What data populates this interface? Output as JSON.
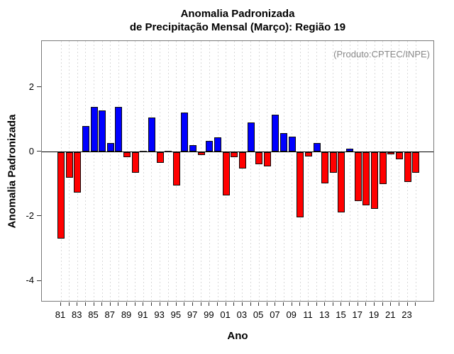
{
  "title": {
    "line1": "Anomalia Padronizada",
    "line2": "de Precipitação Mensal (Março): Região 19"
  },
  "annotation": "(Produto:CPTEC/INPE)",
  "y_axis": {
    "label": "Anomalia Padronizada",
    "tick_labels": [
      "2",
      "0",
      "-2",
      "-4"
    ],
    "tick_values": [
      2,
      0,
      -2,
      -4
    ]
  },
  "x_axis": {
    "label": "Ano",
    "tick_labels": [
      "81",
      "83",
      "85",
      "87",
      "89",
      "91",
      "93",
      "95",
      "97",
      "99",
      "01",
      "03",
      "05",
      "07",
      "09",
      "11",
      "13",
      "15",
      "17",
      "19",
      "21",
      "23"
    ]
  },
  "colors": {
    "positive_bar": "#0000ff",
    "negative_bar": "#ff0000",
    "bar_border": "#0a0a0a",
    "grid": "#d9d9d9",
    "annotation_text": "#888888"
  },
  "chart_data": {
    "type": "bar",
    "title": "Anomalia Padronizada de Precipitação Mensal (Março): Região 19",
    "xlabel": "Ano",
    "ylabel": "Anomalia Padronizada",
    "categories": [
      "81",
      "82",
      "83",
      "84",
      "85",
      "86",
      "87",
      "88",
      "89",
      "90",
      "91",
      "92",
      "93",
      "94",
      "95",
      "96",
      "97",
      "98",
      "99",
      "00",
      "01",
      "02",
      "03",
      "04",
      "05",
      "06",
      "07",
      "08",
      "09",
      "10",
      "11",
      "12",
      "13",
      "14",
      "15",
      "16",
      "17",
      "18",
      "19",
      "20",
      "21",
      "22",
      "23",
      "24"
    ],
    "values": [
      -2.67,
      -0.78,
      -1.25,
      0.8,
      1.4,
      1.28,
      0.28,
      1.38,
      -0.15,
      -0.62,
      0.0,
      1.07,
      -0.33,
      0.0,
      -1.03,
      1.22,
      0.21,
      -0.09,
      0.33,
      0.44,
      -1.34,
      -0.15,
      -0.5,
      0.9,
      -0.37,
      -0.44,
      1.14,
      0.57,
      0.47,
      -2.01,
      -0.13,
      0.28,
      -0.97,
      -0.64,
      -1.86,
      0.1,
      -1.5,
      -1.65,
      -1.75,
      -0.98,
      -0.05,
      -0.22,
      -0.92,
      -0.64
    ],
    "ylim": [
      -4.68,
      3.42
    ],
    "y_ticks": [
      2,
      0,
      -2,
      -4
    ],
    "zero_line": true,
    "grid": "vertical-dashed",
    "legend": "none",
    "color_rule": "positive=blue, negative=red"
  }
}
